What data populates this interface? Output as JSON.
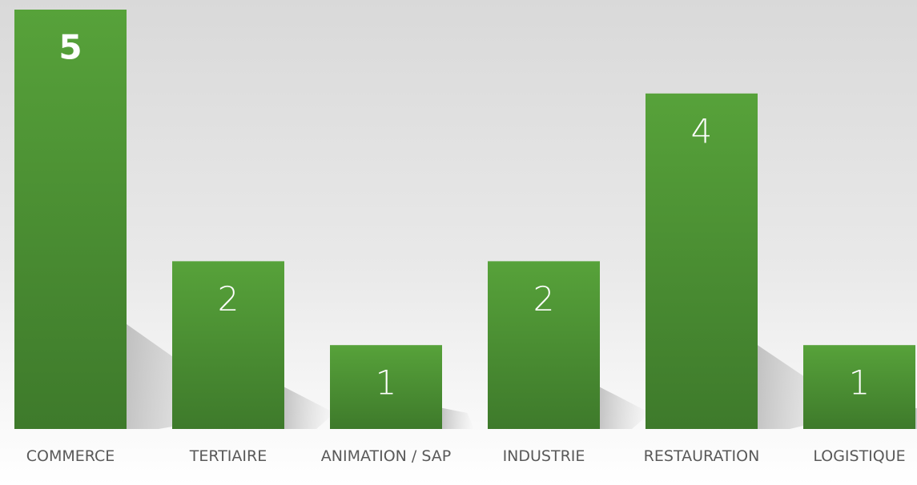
{
  "chart_data": {
    "type": "bar",
    "categories": [
      "COMMERCE",
      "TERTIAIRE",
      "ANIMATION / SAP",
      "INDUSTRIE",
      "RESTAURATION",
      "LOGISTIQUE"
    ],
    "values": [
      5,
      2,
      1,
      2,
      4,
      1
    ],
    "color": "#4a8f33",
    "ylim": [
      0,
      5
    ]
  }
}
